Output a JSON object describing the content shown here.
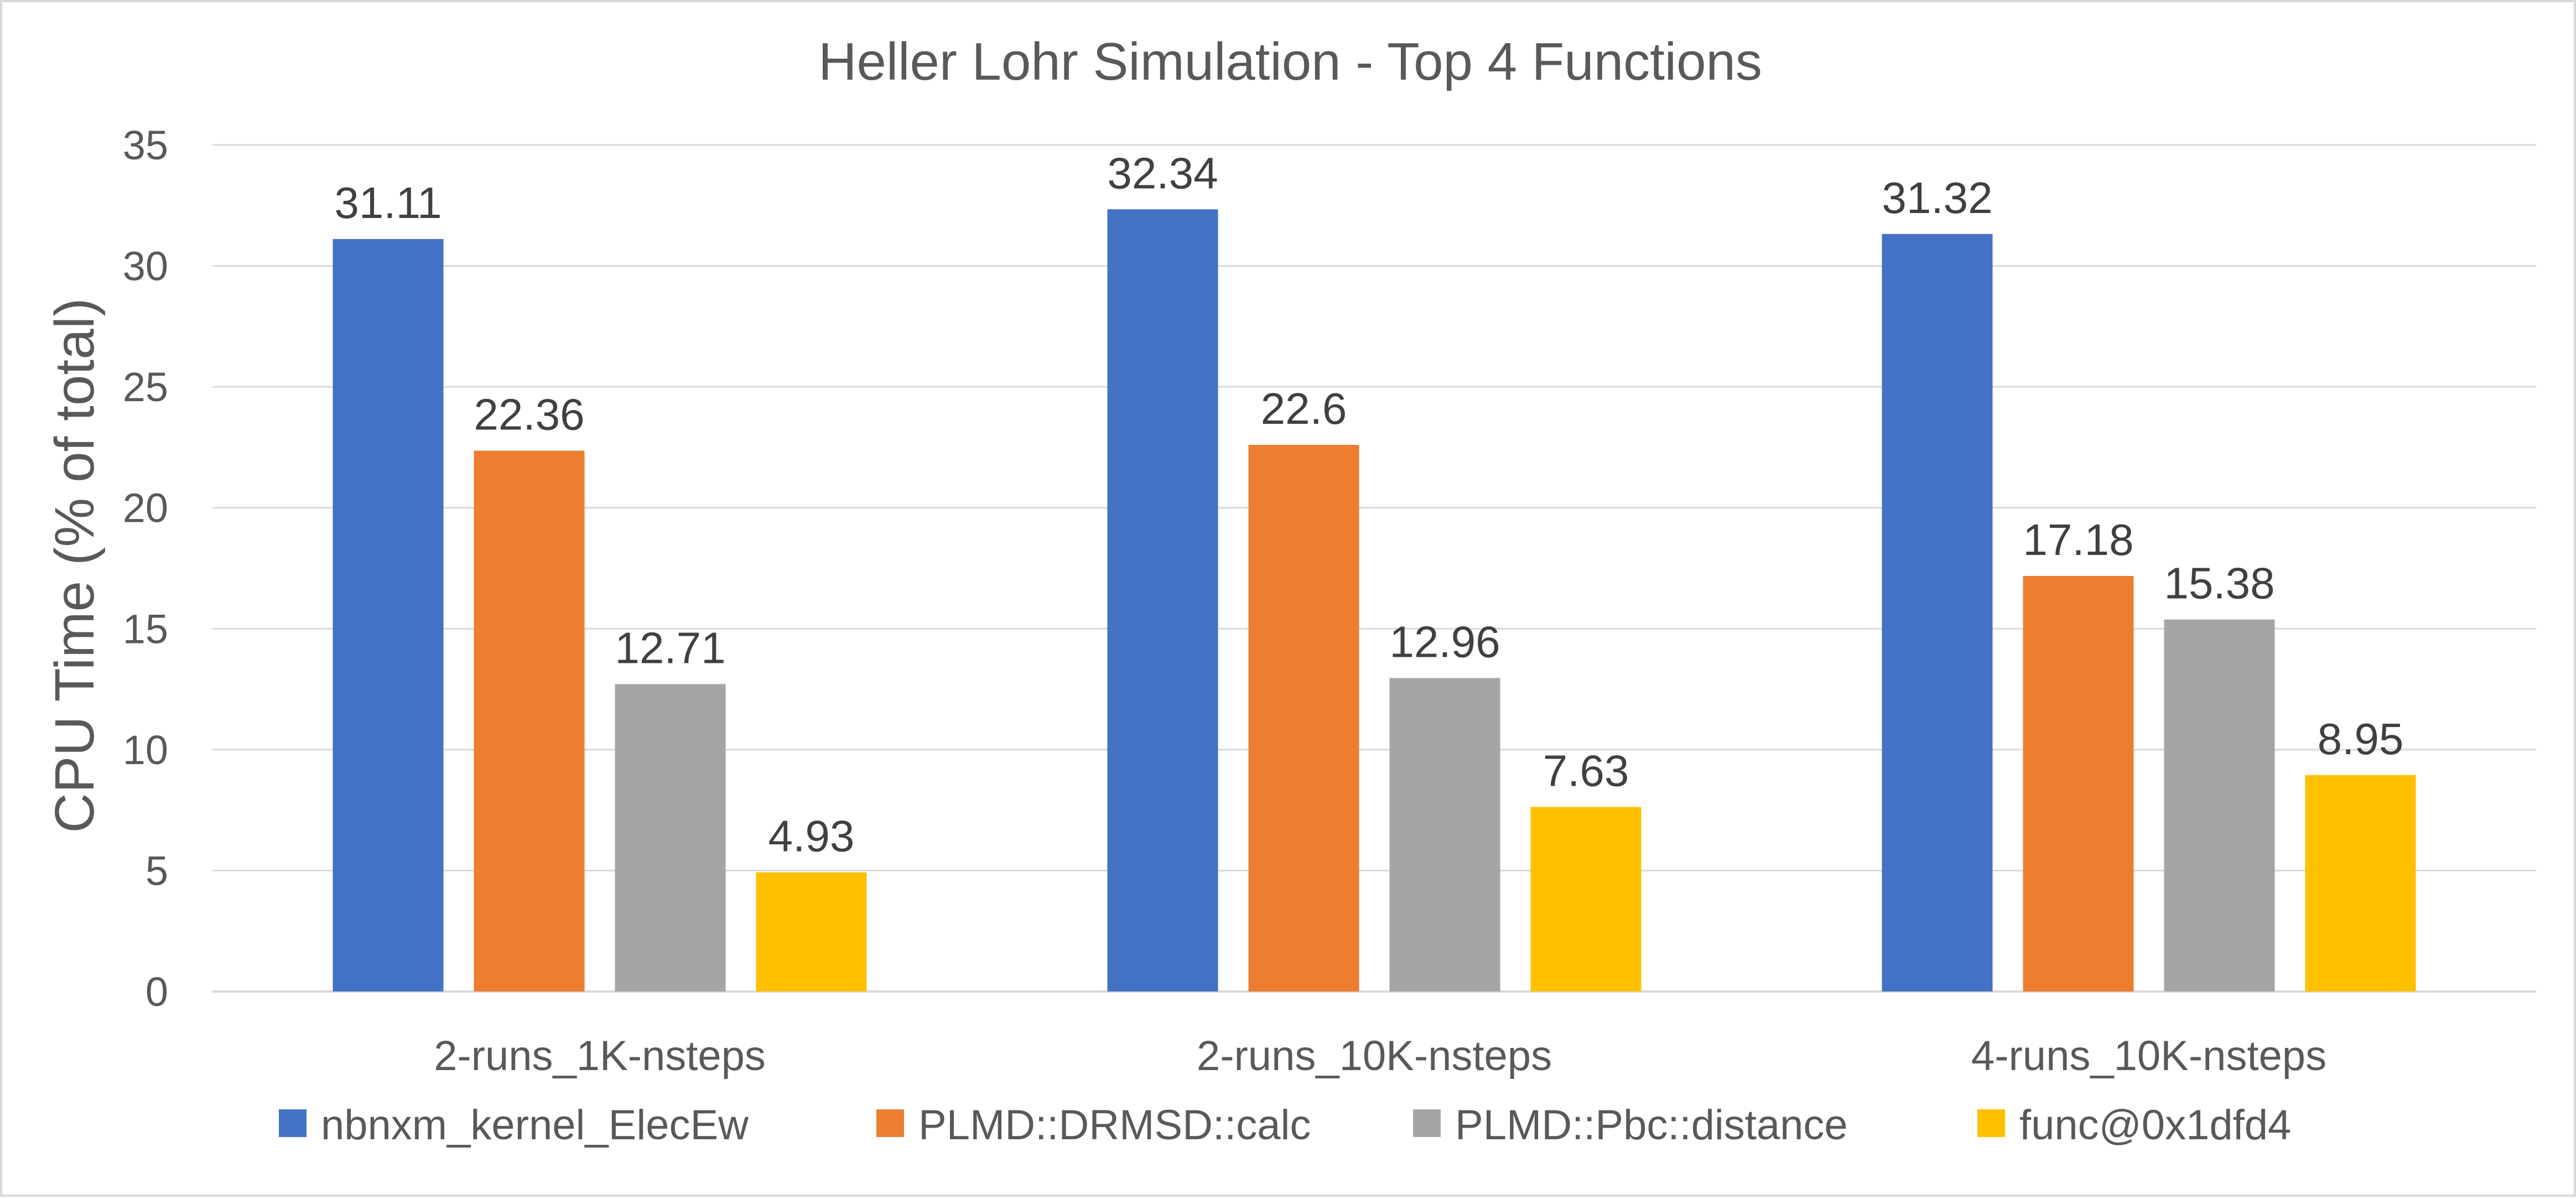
{
  "chart_data": {
    "type": "bar",
    "title": "Heller Lohr Simulation - Top 4 Functions",
    "xlabel": "",
    "ylabel": "CPU Time (% of total)",
    "ylim": [
      0,
      35
    ],
    "yticks": [
      0,
      5,
      10,
      15,
      20,
      25,
      30,
      35
    ],
    "grid": true,
    "legend_position": "bottom",
    "categories": [
      "2-runs_1K-nsteps",
      "2-runs_10K-nsteps",
      "4-runs_10K-nsteps"
    ],
    "series": [
      {
        "name": "nbnxm_kernel_ElecEw",
        "color": "#4472c4",
        "values": [
          31.11,
          32.34,
          31.32
        ]
      },
      {
        "name": "PLMD::DRMSD::calc",
        "color": "#ed7d31",
        "values": [
          22.36,
          22.6,
          17.18
        ]
      },
      {
        "name": "PLMD::Pbc::distance",
        "color": "#a5a5a5",
        "values": [
          12.71,
          12.96,
          15.38
        ]
      },
      {
        "name": "func@0x1dfd4",
        "color": "#ffc000",
        "values": [
          4.93,
          7.63,
          8.95
        ]
      }
    ]
  }
}
